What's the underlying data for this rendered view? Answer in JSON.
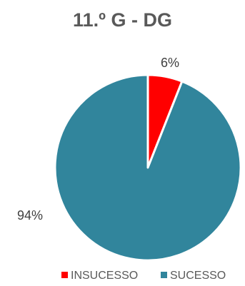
{
  "chart_data": {
    "type": "pie",
    "title": "11.º G - DG",
    "categories": [
      "INSUCESSO",
      "SUCESSO"
    ],
    "values": [
      6,
      94
    ],
    "data_labels": [
      "6%",
      "94%"
    ],
    "colors": [
      "#ff0000",
      "#31859c"
    ],
    "legend": {
      "position": "bottom",
      "entries": [
        "INSUCESSO",
        "SUCESSO"
      ]
    }
  }
}
